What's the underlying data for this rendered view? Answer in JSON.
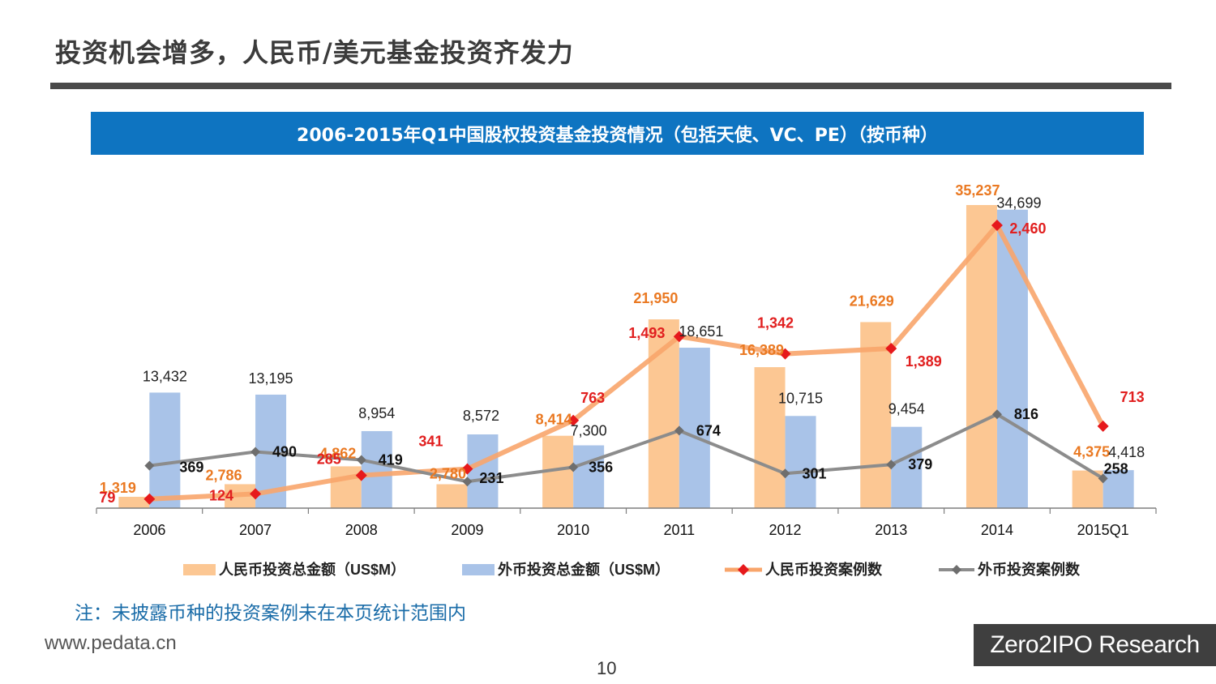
{
  "page": {
    "title": "投资机会增多，人民币/美元基金投资齐发力",
    "note": "注：未披露币种的投资案例未在本页统计范围内",
    "website": "www.pedata.cn",
    "page_number": "10",
    "brand": "Zero2IPO Research"
  },
  "colors": {
    "rmb_bar": "#fcc793",
    "fx_bar": "#a9c3e8",
    "rmb_line": "#f8a56b",
    "rmb_marker": "#e6191c",
    "fx_line": "#8c8c8c",
    "fx_marker": "#6e6e6e",
    "rmb_amount_label": "#ea7922",
    "rmb_count_label": "#e11f1f",
    "fx_amount_label": "#222222",
    "fx_count_label": "#111111",
    "banner": "#0e74c1"
  },
  "chart_data": {
    "type": "bar",
    "title": "2006-2015年Q1中国股权投资基金投资情况（包括天使、VC、PE）（按币种）",
    "categories": [
      "2006",
      "2007",
      "2008",
      "2009",
      "2010",
      "2011",
      "2012",
      "2013",
      "2014",
      "2015Q1"
    ],
    "series": [
      {
        "name": "人民币投资总金额（US$M）",
        "kind": "bar",
        "axis": "amount",
        "values": [
          1319,
          2786,
          4862,
          2780,
          8414,
          21950,
          16389,
          21629,
          35237,
          4375
        ],
        "labels": [
          "1,319",
          "2,786",
          "4,862",
          "2,780",
          "8,414",
          "21,950",
          "16,389",
          "21,629",
          "35,237",
          "4,375"
        ]
      },
      {
        "name": "外币投资总金额（US$M）",
        "kind": "bar",
        "axis": "amount",
        "values": [
          13432,
          13195,
          8954,
          8572,
          7300,
          18651,
          10715,
          9454,
          34699,
          4418
        ],
        "labels": [
          "13,432",
          "13,195",
          "8,954",
          "8,572",
          "7,300",
          "18,651",
          "10,715",
          "9,454",
          "34,699",
          "4,418"
        ]
      },
      {
        "name": "人民币投资案例数",
        "kind": "line",
        "axis": "count",
        "values": [
          79,
          124,
          285,
          341,
          763,
          1493,
          1342,
          1389,
          2460,
          713
        ],
        "labels": [
          "79",
          "124",
          "285",
          "341",
          "763",
          "1,493",
          "1,342",
          "1,389",
          "2,460",
          "713"
        ]
      },
      {
        "name": "外币投资案例数",
        "kind": "line",
        "axis": "count",
        "values": [
          369,
          490,
          419,
          231,
          356,
          674,
          301,
          379,
          816,
          258
        ],
        "labels": [
          "369",
          "490",
          "419",
          "231",
          "356",
          "674",
          "301",
          "379",
          "816",
          "258"
        ]
      }
    ],
    "amount_ylim": [
      0,
      37000
    ],
    "count_ylim": [
      0,
      2950
    ],
    "legend_position": "bottom"
  }
}
